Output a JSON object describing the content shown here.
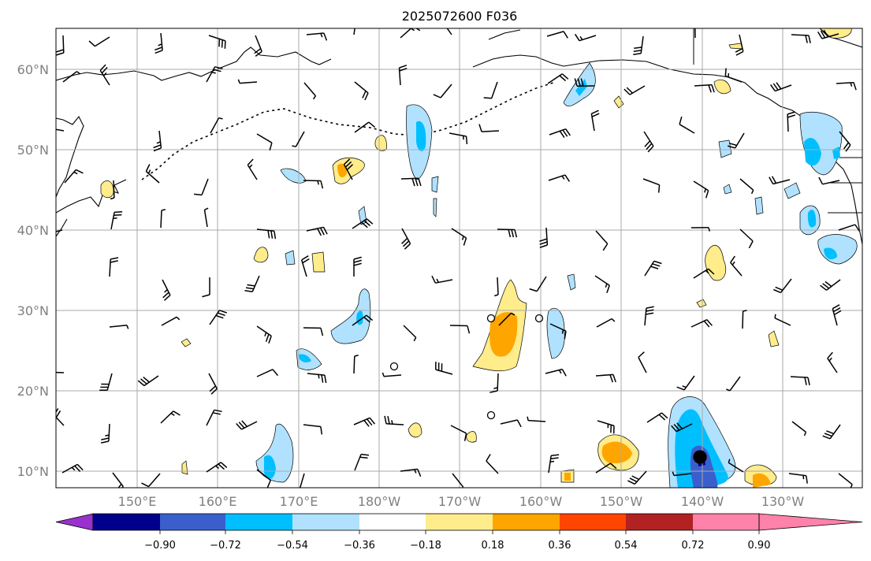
{
  "title": "2025072600 F036",
  "lat_labels": [
    "60°N",
    "50°N",
    "40°N",
    "30°N",
    "20°N",
    "10°N"
  ],
  "lon_labels": [
    "150°E",
    "160°E",
    "170°E",
    "180°W",
    "170°W",
    "160°W",
    "150°W",
    "140°W",
    "130°W"
  ],
  "colorbar": {
    "ticks": [
      "−0.90",
      "−0.72",
      "−0.54",
      "−0.36",
      "−0.18",
      "0.18",
      "0.36",
      "0.54",
      "0.72",
      "0.90"
    ],
    "colors": [
      "#9932CC",
      "#00008B",
      "#3A5FCD",
      "#00BFFF",
      "#B0E2FF",
      "#FFFFFF",
      "#FFEC8B",
      "#FFA500",
      "#FF4500",
      "#B22222",
      "#FF82AB"
    ]
  },
  "icons": {
    "barb": "wind-barb-icon",
    "calm": "calm-wind-circle-icon"
  }
}
